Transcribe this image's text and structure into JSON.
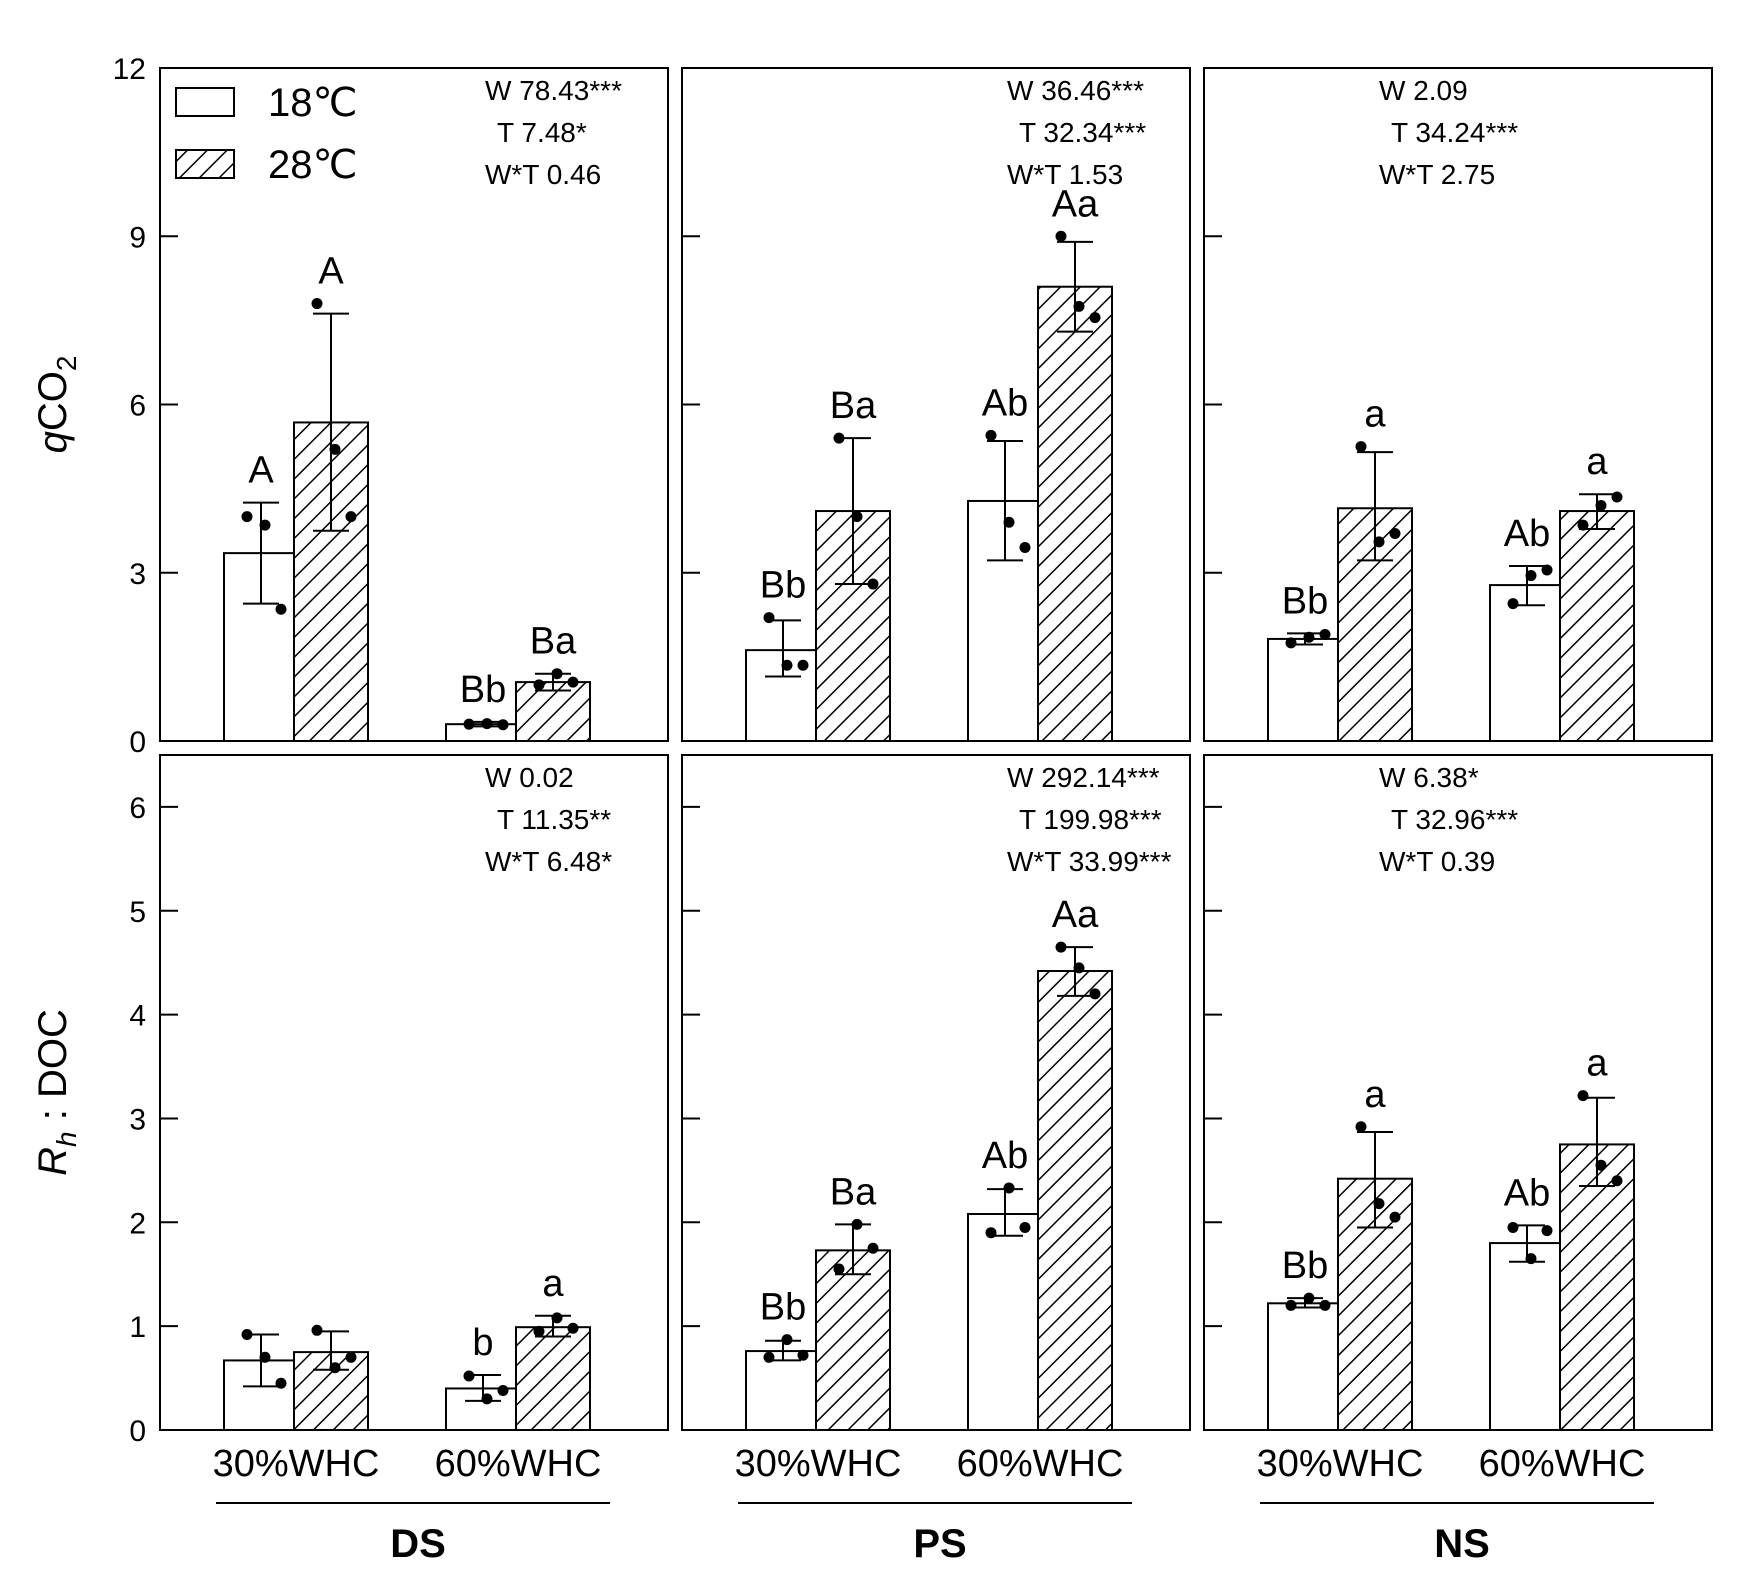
{
  "legend": [
    {
      "name": "18℃",
      "pattern": "open"
    },
    {
      "name": "28℃",
      "pattern": "hatched"
    }
  ],
  "groups": [
    "DS",
    "PS",
    "NS"
  ],
  "x_labels": [
    "30%WHC",
    "60%WHC"
  ],
  "colors": {
    "axis": "#000000",
    "open_fill": "#ffffff",
    "hatch": "#000000"
  },
  "chart_data": [
    {
      "type": "bar",
      "row": "top",
      "ylabel_prefix": "q",
      "ylabel_main": "CO",
      "ylabel_sub": "2",
      "ylim": [
        0,
        12
      ],
      "yticks": [
        0,
        3,
        6,
        9,
        12
      ],
      "panels": [
        {
          "group": "DS",
          "stats": [
            "W 78.43***",
            "T 7.48*",
            "W*T 0.46"
          ],
          "bars": [
            {
              "category": "30%WHC",
              "series": "18℃",
              "value": 3.35,
              "err_low": 2.45,
              "err_high": 4.25,
              "points": [
                4.0,
                3.85,
                2.35
              ],
              "letter": "A"
            },
            {
              "category": "30%WHC",
              "series": "28℃",
              "value": 5.68,
              "err_low": 3.75,
              "err_high": 7.62,
              "points": [
                7.8,
                5.2,
                4.0
              ],
              "letter": "A"
            },
            {
              "category": "60%WHC",
              "series": "18℃",
              "value": 0.3,
              "err_low": 0.26,
              "err_high": 0.34,
              "points": [
                0.3,
                0.31,
                0.29
              ],
              "letter": "Bb"
            },
            {
              "category": "60%WHC",
              "series": "28℃",
              "value": 1.05,
              "err_low": 0.9,
              "err_high": 1.2,
              "points": [
                1.0,
                1.2,
                1.05
              ],
              "letter": "Ba"
            }
          ]
        },
        {
          "group": "PS",
          "stats": [
            "W 36.46***",
            "T 32.34***",
            "W*T 1.53"
          ],
          "bars": [
            {
              "category": "30%WHC",
              "series": "18℃",
              "value": 1.62,
              "err_low": 1.15,
              "err_high": 2.15,
              "points": [
                2.2,
                1.35,
                1.35
              ],
              "letter": "Bb"
            },
            {
              "category": "30%WHC",
              "series": "28℃",
              "value": 4.1,
              "err_low": 2.8,
              "err_high": 5.4,
              "points": [
                5.4,
                4.0,
                2.8
              ],
              "letter": "Ba"
            },
            {
              "category": "60%WHC",
              "series": "18℃",
              "value": 4.28,
              "err_low": 3.22,
              "err_high": 5.35,
              "points": [
                5.45,
                3.9,
                3.45
              ],
              "letter": "Ab"
            },
            {
              "category": "60%WHC",
              "series": "28℃",
              "value": 8.1,
              "err_low": 7.3,
              "err_high": 8.9,
              "points": [
                9.0,
                7.75,
                7.55
              ],
              "letter": "Aa"
            }
          ]
        },
        {
          "group": "NS",
          "stats": [
            "W 2.09",
            "T 34.24***",
            "W*T 2.75"
          ],
          "bars": [
            {
              "category": "30%WHC",
              "series": "18℃",
              "value": 1.82,
              "err_low": 1.72,
              "err_high": 1.92,
              "points": [
                1.75,
                1.85,
                1.9
              ],
              "letter": "Bb"
            },
            {
              "category": "30%WHC",
              "series": "28℃",
              "value": 4.15,
              "err_low": 3.22,
              "err_high": 5.15,
              "points": [
                5.25,
                3.55,
                3.7
              ],
              "letter": "a"
            },
            {
              "category": "60%WHC",
              "series": "18℃",
              "value": 2.78,
              "err_low": 2.42,
              "err_high": 3.12,
              "points": [
                2.45,
                2.95,
                3.05
              ],
              "letter": "Ab"
            },
            {
              "category": "60%WHC",
              "series": "28℃",
              "value": 4.1,
              "err_low": 3.78,
              "err_high": 4.4,
              "points": [
                3.85,
                4.2,
                4.35
              ],
              "letter": "a"
            }
          ]
        }
      ]
    },
    {
      "type": "bar",
      "row": "bottom",
      "ylabel_prefix": "R",
      "ylabel_main": "h",
      "ylabel_sub": " : DOC",
      "ylim": [
        0,
        6.5
      ],
      "yticks": [
        0,
        1,
        2,
        3,
        4,
        5,
        6
      ],
      "panels": [
        {
          "group": "DS",
          "stats": [
            "W 0.02",
            "T 11.35**",
            "W*T 6.48*"
          ],
          "bars": [
            {
              "category": "30%WHC",
              "series": "18℃",
              "value": 0.67,
              "err_low": 0.42,
              "err_high": 0.92,
              "points": [
                0.92,
                0.7,
                0.45
              ],
              "letter": ""
            },
            {
              "category": "30%WHC",
              "series": "28℃",
              "value": 0.75,
              "err_low": 0.58,
              "err_high": 0.95,
              "points": [
                0.96,
                0.6,
                0.7
              ],
              "letter": ""
            },
            {
              "category": "60%WHC",
              "series": "18℃",
              "value": 0.4,
              "err_low": 0.28,
              "err_high": 0.53,
              "points": [
                0.52,
                0.3,
                0.38
              ],
              "letter": "b"
            },
            {
              "category": "60%WHC",
              "series": "28℃",
              "value": 0.99,
              "err_low": 0.9,
              "err_high": 1.1,
              "points": [
                0.95,
                1.08,
                0.98
              ],
              "letter": "a"
            }
          ]
        },
        {
          "group": "PS",
          "stats": [
            "W 292.14***",
            "T 199.98***",
            "W*T 33.99***"
          ],
          "bars": [
            {
              "category": "30%WHC",
              "series": "18℃",
              "value": 0.76,
              "err_low": 0.67,
              "err_high": 0.86,
              "points": [
                0.7,
                0.87,
                0.72
              ],
              "letter": "Bb"
            },
            {
              "category": "30%WHC",
              "series": "28℃",
              "value": 1.73,
              "err_low": 1.5,
              "err_high": 1.98,
              "points": [
                1.55,
                1.98,
                1.75
              ],
              "letter": "Ba"
            },
            {
              "category": "60%WHC",
              "series": "18℃",
              "value": 2.08,
              "err_low": 1.87,
              "err_high": 2.32,
              "points": [
                1.9,
                2.33,
                1.95
              ],
              "letter": "Ab"
            },
            {
              "category": "60%WHC",
              "series": "28℃",
              "value": 4.42,
              "err_low": 4.18,
              "err_high": 4.65,
              "points": [
                4.65,
                4.45,
                4.2
              ],
              "letter": "Aa"
            }
          ]
        },
        {
          "group": "NS",
          "stats": [
            "W 6.38*",
            "T 32.96***",
            "W*T 0.39"
          ],
          "bars": [
            {
              "category": "30%WHC",
              "series": "18℃",
              "value": 1.22,
              "err_low": 1.18,
              "err_high": 1.27,
              "points": [
                1.2,
                1.27,
                1.2
              ],
              "letter": "Bb"
            },
            {
              "category": "30%WHC",
              "series": "28℃",
              "value": 2.42,
              "err_low": 1.95,
              "err_high": 2.87,
              "points": [
                2.92,
                2.18,
                2.05
              ],
              "letter": "a"
            },
            {
              "category": "60%WHC",
              "series": "18℃",
              "value": 1.8,
              "err_low": 1.62,
              "err_high": 1.97,
              "points": [
                1.95,
                1.65,
                1.92
              ],
              "letter": "Ab"
            },
            {
              "category": "60%WHC",
              "series": "28℃",
              "value": 2.75,
              "err_low": 2.35,
              "err_high": 3.2,
              "points": [
                3.22,
                2.55,
                2.4
              ],
              "letter": "a"
            }
          ]
        }
      ]
    }
  ]
}
